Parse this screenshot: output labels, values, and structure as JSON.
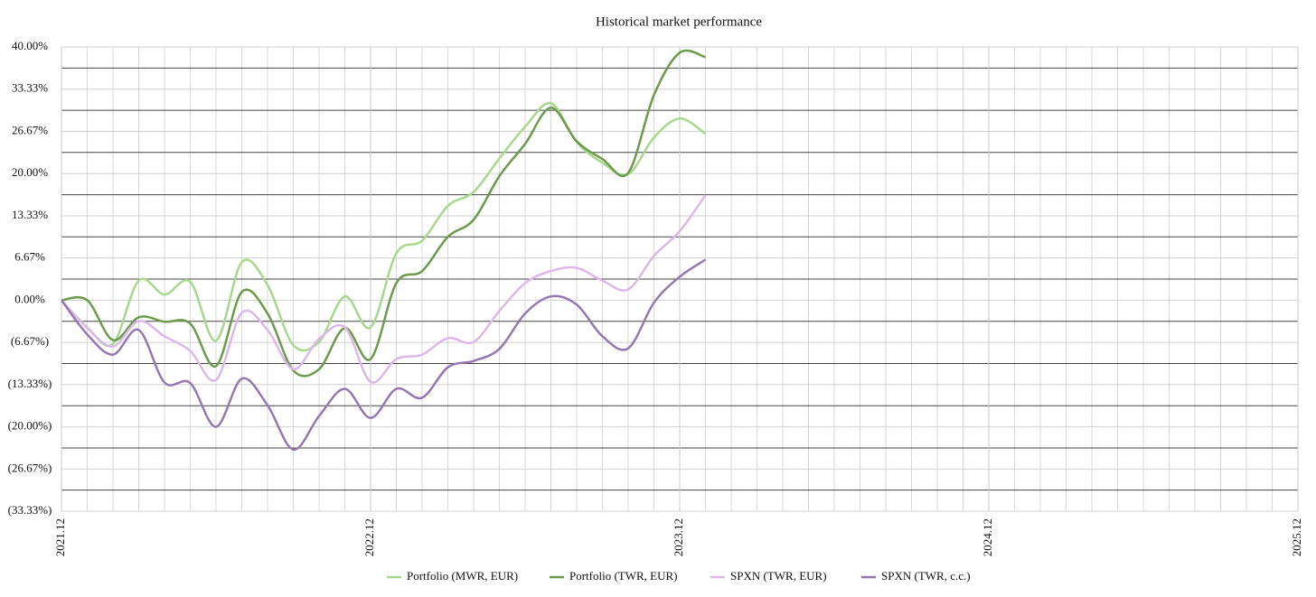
{
  "chart_data": {
    "type": "line",
    "title": "Historical market performance",
    "x": [
      "2021.12",
      "2022.01",
      "2022.02",
      "2022.03",
      "2022.04",
      "2022.05",
      "2022.06",
      "2022.07",
      "2022.08",
      "2022.09",
      "2022.10",
      "2022.11",
      "2022.12",
      "2023.01",
      "2023.02",
      "2023.03",
      "2023.04",
      "2023.05",
      "2023.06",
      "2023.07",
      "2023.08",
      "2023.09",
      "2023.10",
      "2023.11",
      "2023.12",
      "2024.01"
    ],
    "xlim": [
      "2021.12",
      "2025.12"
    ],
    "xticks": [
      "2021.12",
      "2022.12",
      "2023.12",
      "2024.12",
      "2025.12"
    ],
    "ylim": [
      -33.33,
      40
    ],
    "yticks": [
      {
        "value": 40,
        "label": "40.00%"
      },
      {
        "value": 33.33,
        "label": "33.33%"
      },
      {
        "value": 26.67,
        "label": "26.67%"
      },
      {
        "value": 20,
        "label": "20.00%"
      },
      {
        "value": 13.33,
        "label": "13.33%"
      },
      {
        "value": 6.67,
        "label": "6.67%"
      },
      {
        "value": 0,
        "label": "0.00%"
      },
      {
        "value": -6.67,
        "label": "(6.67%)"
      },
      {
        "value": -13.33,
        "label": "(13.33%)"
      },
      {
        "value": -20,
        "label": "(20.00%)"
      },
      {
        "value": -26.67,
        "label": "(26.67%)"
      },
      {
        "value": -33.33,
        "label": "(33.33%)"
      }
    ],
    "grid": true,
    "legend": "bottom",
    "series": [
      {
        "name": "Portfolio (MWR, EUR)",
        "color": "#a6d98c",
        "values": [
          0,
          -4.3,
          -6.9,
          3.1,
          0.9,
          2.9,
          -6.4,
          6.0,
          2.4,
          -7.1,
          -6.6,
          0.6,
          -4.3,
          7.4,
          9.4,
          14.9,
          17.1,
          22.4,
          27.4,
          31.1,
          25.0,
          21.7,
          19.9,
          25.7,
          28.7,
          26.3
        ]
      },
      {
        "name": "Portfolio (TWR, EUR)",
        "color": "#6b9b4b",
        "values": [
          0,
          0,
          -6.3,
          -2.7,
          -3.4,
          -3.7,
          -10.4,
          1.3,
          -2.1,
          -11.1,
          -10.9,
          -4.4,
          -9.3,
          2.7,
          4.6,
          10.0,
          12.7,
          19.6,
          24.7,
          30.4,
          25.1,
          22.3,
          20.1,
          32.4,
          39.1,
          38.4
        ]
      },
      {
        "name": "SPXN (TWR, EUR)",
        "color": "#dcb8ea",
        "values": [
          0,
          -4.4,
          -7.3,
          -3.3,
          -5.7,
          -8.0,
          -12.6,
          -2.0,
          -4.7,
          -10.9,
          -6.1,
          -4.3,
          -12.9,
          -9.3,
          -8.6,
          -6.0,
          -6.6,
          -1.7,
          2.7,
          4.6,
          5.1,
          3.1,
          1.7,
          7.0,
          10.9,
          16.6
        ]
      },
      {
        "name": "SPXN (TWR, c.c.)",
        "color": "#9479b1",
        "values": [
          0,
          -5.4,
          -8.6,
          -4.7,
          -13.0,
          -13.1,
          -20.0,
          -12.4,
          -16.6,
          -23.6,
          -18.3,
          -14.0,
          -18.6,
          -14.0,
          -15.4,
          -10.6,
          -9.6,
          -7.7,
          -2.1,
          0.6,
          -0.7,
          -5.7,
          -7.6,
          -0.4,
          3.7,
          6.4
        ]
      }
    ]
  }
}
